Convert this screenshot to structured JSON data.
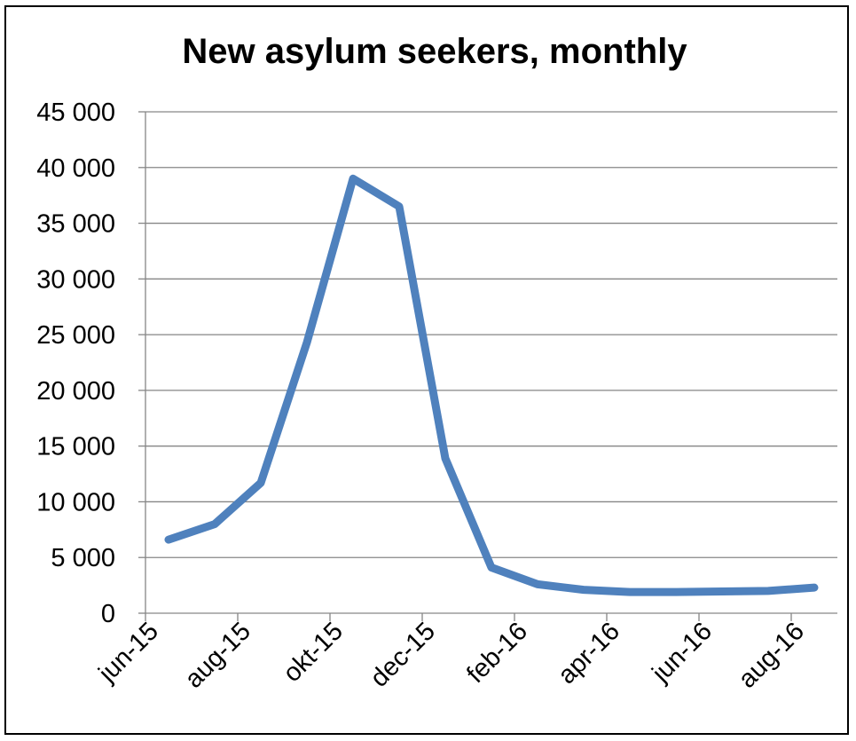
{
  "chart_data": {
    "type": "line",
    "title": "New asylum seekers, monthly",
    "xlabel": "",
    "ylabel": "",
    "x": [
      "jun-15",
      "jul-15",
      "aug-15",
      "sep-15",
      "okt-15",
      "nov-15",
      "dec-15",
      "jan-16",
      "feb-16",
      "mar-16",
      "apr-16",
      "maj-16",
      "jun-16",
      "jul-16",
      "aug-16"
    ],
    "x_tick_labels": [
      "jun-15",
      "aug-15",
      "okt-15",
      "dec-15",
      "feb-16",
      "apr-16",
      "jun-16",
      "aug-16"
    ],
    "series": [
      {
        "values": [
          6600,
          8000,
          11700,
          24300,
          39000,
          36500,
          13900,
          4100,
          2600,
          2100,
          1900,
          1900,
          1950,
          2000,
          2300
        ],
        "color": "#4F81BD"
      }
    ],
    "ylim": [
      0,
      45000
    ],
    "y_ticks": [
      0,
      5000,
      10000,
      15000,
      20000,
      25000,
      30000,
      35000,
      40000,
      45000
    ],
    "y_tick_labels": [
      "0",
      "5 000",
      "10 000",
      "15 000",
      "20 000",
      "25 000",
      "30 000",
      "35 000",
      "40 000",
      "45 000"
    ],
    "grid": true,
    "legend": "none"
  }
}
